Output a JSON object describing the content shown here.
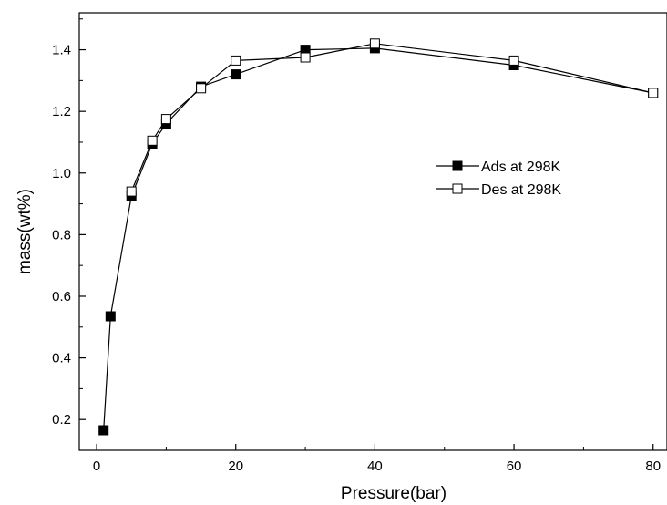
{
  "chart_data": {
    "type": "line",
    "title": "",
    "xlabel": "Pressure(bar)",
    "ylabel": "mass(wt%)",
    "xlim": [
      -2.5,
      82
    ],
    "ylim": [
      0.1,
      1.52
    ],
    "x_ticks": [
      0,
      20,
      40,
      60,
      80
    ],
    "x_tick_labels": [
      "0",
      "20",
      "40",
      "60",
      "80"
    ],
    "y_ticks": [
      0.2,
      0.4,
      0.6,
      0.8,
      1.0,
      1.2,
      1.4
    ],
    "y_tick_labels": [
      "0.2",
      "0.4",
      "0.6",
      "0.8",
      "1.0",
      "1.2",
      "1.4"
    ],
    "grid": false,
    "legend_position": "center-right",
    "series": [
      {
        "name": "Ads at 298K",
        "marker": "filled-square",
        "color": "#000000",
        "x": [
          1,
          2,
          5,
          8,
          10,
          15,
          20,
          30,
          40,
          60,
          80
        ],
        "y": [
          0.165,
          0.535,
          0.925,
          1.095,
          1.16,
          1.28,
          1.32,
          1.4,
          1.405,
          1.35,
          1.26
        ]
      },
      {
        "name": "Des at 298K",
        "marker": "open-square",
        "color": "#000000",
        "x": [
          5,
          8,
          10,
          15,
          20,
          30,
          40,
          60,
          80
        ],
        "y": [
          0.94,
          1.105,
          1.175,
          1.275,
          1.365,
          1.375,
          1.42,
          1.365,
          1.26
        ]
      }
    ]
  }
}
